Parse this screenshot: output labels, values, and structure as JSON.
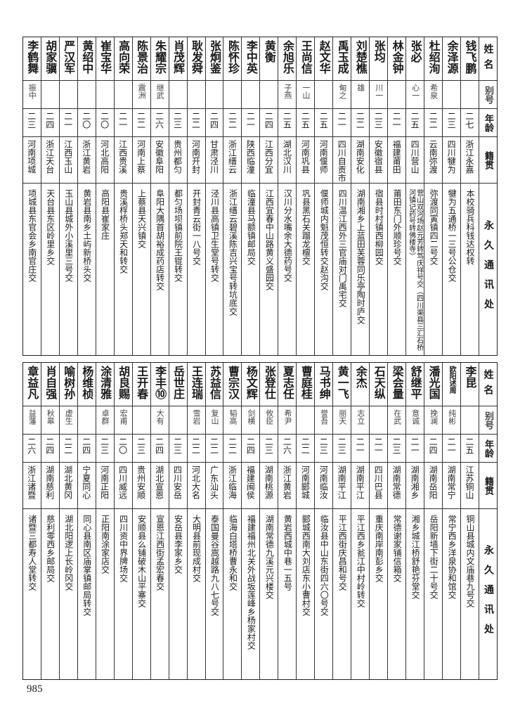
{
  "headers": {
    "name": "姓名",
    "alias": "别号",
    "age": "年龄",
    "origin": "籍贯",
    "address": "永久通讯处"
  },
  "top": [
    {
      "name": "钱飞鹏",
      "alias": "",
      "age": "二七",
      "origin": "浙江永嘉",
      "address": "本校骑兵科钱达权转"
    },
    {
      "name": "余泽源",
      "alias": "",
      "age": "二三",
      "origin": "四川犍为",
      "address": "犍为五通桥一三号公仓交"
    },
    {
      "name": "杜绍洵",
      "alias": "希泉",
      "age": "二二",
      "origin": "云南弥渡",
      "address": "弥渡同寅镇四二号交"
    },
    {
      "name": "张必",
      "alias": "心一",
      "age": "二五",
      "origin": "四川营山",
      "address": "营山双河场赵元芳转笃庆祥号交（四川渠县三汇石桥河镇记药号转佛楼寺）"
    },
    {
      "name": "林金钟",
      "alias": "",
      "age": "二一",
      "origin": "福建莆田",
      "address": "莆田东门外顺珍号交"
    },
    {
      "name": "张均",
      "alias": "川一",
      "age": "二三",
      "origin": "安徽宿县",
      "address": "宿县时村镇西柳园交"
    },
    {
      "name": "刘楚樵",
      "alias": "雄",
      "age": "二二",
      "origin": "湖南安化",
      "address": "湖南湘乡上蓝田芙蓉同乐亭陶时庐交"
    },
    {
      "name": "禹玉成",
      "alias": "甸之",
      "age": "二一",
      "origin": "四川自贡市",
      "address": "四川温江西外三官庙对门禹宅交"
    },
    {
      "name": "赵文华",
      "alias": "",
      "age": "二五",
      "origin": "河南偃师",
      "address": "偃师城内魁茂恒转交赵沟交"
    },
    {
      "name": "王尚信",
      "alias": "一山",
      "age": "二五",
      "origin": "河南巩县",
      "address": "巩县黑石关蹓龙檀交"
    },
    {
      "name": "余旭乐",
      "alias": "子燕",
      "age": "二五",
      "origin": "湖北汉川",
      "address": "汉川分水嘴余大德药号交"
    },
    {
      "name": "黄衡",
      "alias": "",
      "age": "二四",
      "origin": "江西分宜",
      "address": "江西宜春中山路黄义盛园交"
    },
    {
      "name": "李中英",
      "alias": "",
      "age": "二一",
      "origin": "陕西临潼",
      "address": "临潼县马额镇邮局交"
    },
    {
      "name": "陈怀珍",
      "alias": "",
      "age": "二二",
      "origin": "浙江缙云",
      "address": "浙江缙云碧溪陈吉兴宝号转坑底交"
    },
    {
      "name": "张炯鉴",
      "alias": "",
      "age": "二四",
      "origin": "甘肃泾川",
      "address": "泾川县高镇卫生堂号转交"
    },
    {
      "name": "耿发舜",
      "alias": "",
      "age": "二二",
      "origin": "河南开封",
      "address": "开封青云街一八号交"
    },
    {
      "name": "肖茂辉",
      "alias": "",
      "age": "二三",
      "origin": "贵州都匀",
      "address": "都匀场坝镇前院王锟转交"
    },
    {
      "name": "朱耀宗",
      "alias": "继武",
      "age": "二六",
      "origin": "安徽阜阳",
      "address": "阜阳大隅首胡裕成药店转交"
    },
    {
      "name": "陈景治",
      "alias": "震洲",
      "age": "二二",
      "origin": "河南上蔡",
      "address": "上蔡县天兴镇交"
    },
    {
      "name": "高向荣",
      "alias": "",
      "age": "二一",
      "origin": "江西贵溪",
      "address": "贵溪桴桥头郑天和转交"
    },
    {
      "name": "崔宝华",
      "alias": "",
      "age": "二〇",
      "origin": "河北高阳",
      "address": "高阳县崔家庄"
    },
    {
      "name": "黄绍中",
      "alias": "",
      "age": "二〇",
      "origin": "浙江黄岩",
      "address": "黄岩县南乡土屿新桥头交"
    },
    {
      "name": "严汉军",
      "alias": "",
      "age": "二一",
      "origin": "江西玉山",
      "address": "玉山县城外小溪里三号交"
    },
    {
      "name": "胡家骥",
      "alias": "",
      "age": "二四",
      "origin": "浙江天台",
      "address": "天台县东区岭里乡交"
    },
    {
      "name": "李鹤舞",
      "alias": "振中",
      "age": "二三",
      "origin": "河南项城",
      "address": "项城县东官会乡南官庄交"
    }
  ],
  "bottom": [
    {
      "name": "李昆",
      "alias": "",
      "age": "二五",
      "origin": "江苏铜山",
      "address": "铜山县城内文庙巷九号交"
    },
    {
      "name": "欧阳述周",
      "alias": "纯彬",
      "age": "二一",
      "origin": "湖南常宁",
      "address": "常宁西乡洋泉协和馆交"
    },
    {
      "name": "潘光国",
      "alias": "挽澜",
      "age": "二四",
      "origin": "湖南岳阳",
      "address": "岳阳新墙下街二十号交"
    },
    {
      "name": "舒继平",
      "alias": "意诚",
      "age": "二一",
      "origin": "湖南湘乡",
      "address": "湘乡城江桥舒艳芬堂交"
    },
    {
      "name": "梁会量",
      "alias": "在武",
      "age": "二三",
      "origin": "湖南常德",
      "address": "常德谢家铺信箱交"
    },
    {
      "name": "石天纵",
      "alias": "",
      "age": "二一",
      "origin": "四川巴县",
      "address": "重庆南岸南彭乡交"
    },
    {
      "name": "余杰",
      "alias": "志立",
      "age": "二一",
      "origin": "湖南平江",
      "address": "平江西乡瓮江中村岭转交"
    },
    {
      "name": "黄一飞",
      "alias": "丽天",
      "age": "二三",
      "origin": "湖南平江",
      "address": "平江西街庆昌和号交"
    },
    {
      "name": "马书绅",
      "alias": "誉吾",
      "age": "二三",
      "origin": "河南临汝",
      "address": "临汝县中山东街四六〇号交"
    },
    {
      "name": "曹庭桂",
      "alias": "",
      "age": "二二",
      "origin": "河南郾城",
      "address": "郾城西南大刘店东小曹村交"
    },
    {
      "name": "夏志任",
      "alias": "希尹",
      "age": "二六",
      "origin": "浙江黄岩",
      "address": "黄岩西城中巷一五号"
    },
    {
      "name": "张登仕",
      "alias": "攸臣",
      "age": "二三",
      "origin": "湖南桃源",
      "address": "湖南常德九溪元兴楼交"
    },
    {
      "name": "杨文辉",
      "alias": "剑横",
      "age": "二四",
      "origin": "福建闽侯",
      "address": "福建福州北关外战坂莲峰乡杨家村交"
    },
    {
      "name": "曹宗汉",
      "alias": "韬高",
      "age": "二二",
      "origin": "浙江临海",
      "address": "临海白塔桥曹永和交"
    },
    {
      "name": "苏益信",
      "alias": "复山",
      "age": "二二",
      "origin": "广东汕头",
      "address": "泰国曼谷嵩越路九八七号交"
    },
    {
      "name": "王连瑞",
      "alias": "雪岩",
      "age": "二二",
      "origin": "河北大名",
      "address": "大明县前现成村交"
    },
    {
      "name": "岳世庄",
      "alias": "",
      "age": "二三",
      "origin": "四川安岳",
      "address": "安岳县李家乡交"
    },
    {
      "name": "李丰⑩",
      "alias": "大有",
      "age": "二四",
      "origin": "湖北宣恩",
      "address": "宣恩江西街孟宏春交"
    },
    {
      "name": "王开春",
      "alias": "",
      "age": "二三",
      "origin": "贵州安顺",
      "address": "安顺县么铺破木山平寨交"
    },
    {
      "name": "胡良赐",
      "alias": "宏甫",
      "age": "二〇",
      "origin": "四川威远",
      "address": "四川资中界牌场交"
    },
    {
      "name": "涂清雅",
      "alias": "卓群",
      "age": "二三",
      "origin": "河南正阳",
      "address": "正阳南涂家店交"
    },
    {
      "name": "杨维桢",
      "alias": "",
      "age": "二四",
      "origin": "宁夏同心",
      "address": "同心县南区庙掌镇邮局转交"
    },
    {
      "name": "喻树孙",
      "alias": "虚生",
      "age": "二二",
      "origin": "湖北黄冈",
      "address": "湖北阳逻上长岭冈交"
    },
    {
      "name": "肖自强",
      "alias": "秋皋",
      "age": "二四",
      "origin": "湖南慈利",
      "address": "慈利零西乡邮局交"
    },
    {
      "name": "章益凡",
      "alias": "益藩",
      "age": "二六",
      "origin": "浙江诸暨",
      "address": "诸暨三都寿人堂转交"
    }
  ],
  "page_number": "985"
}
